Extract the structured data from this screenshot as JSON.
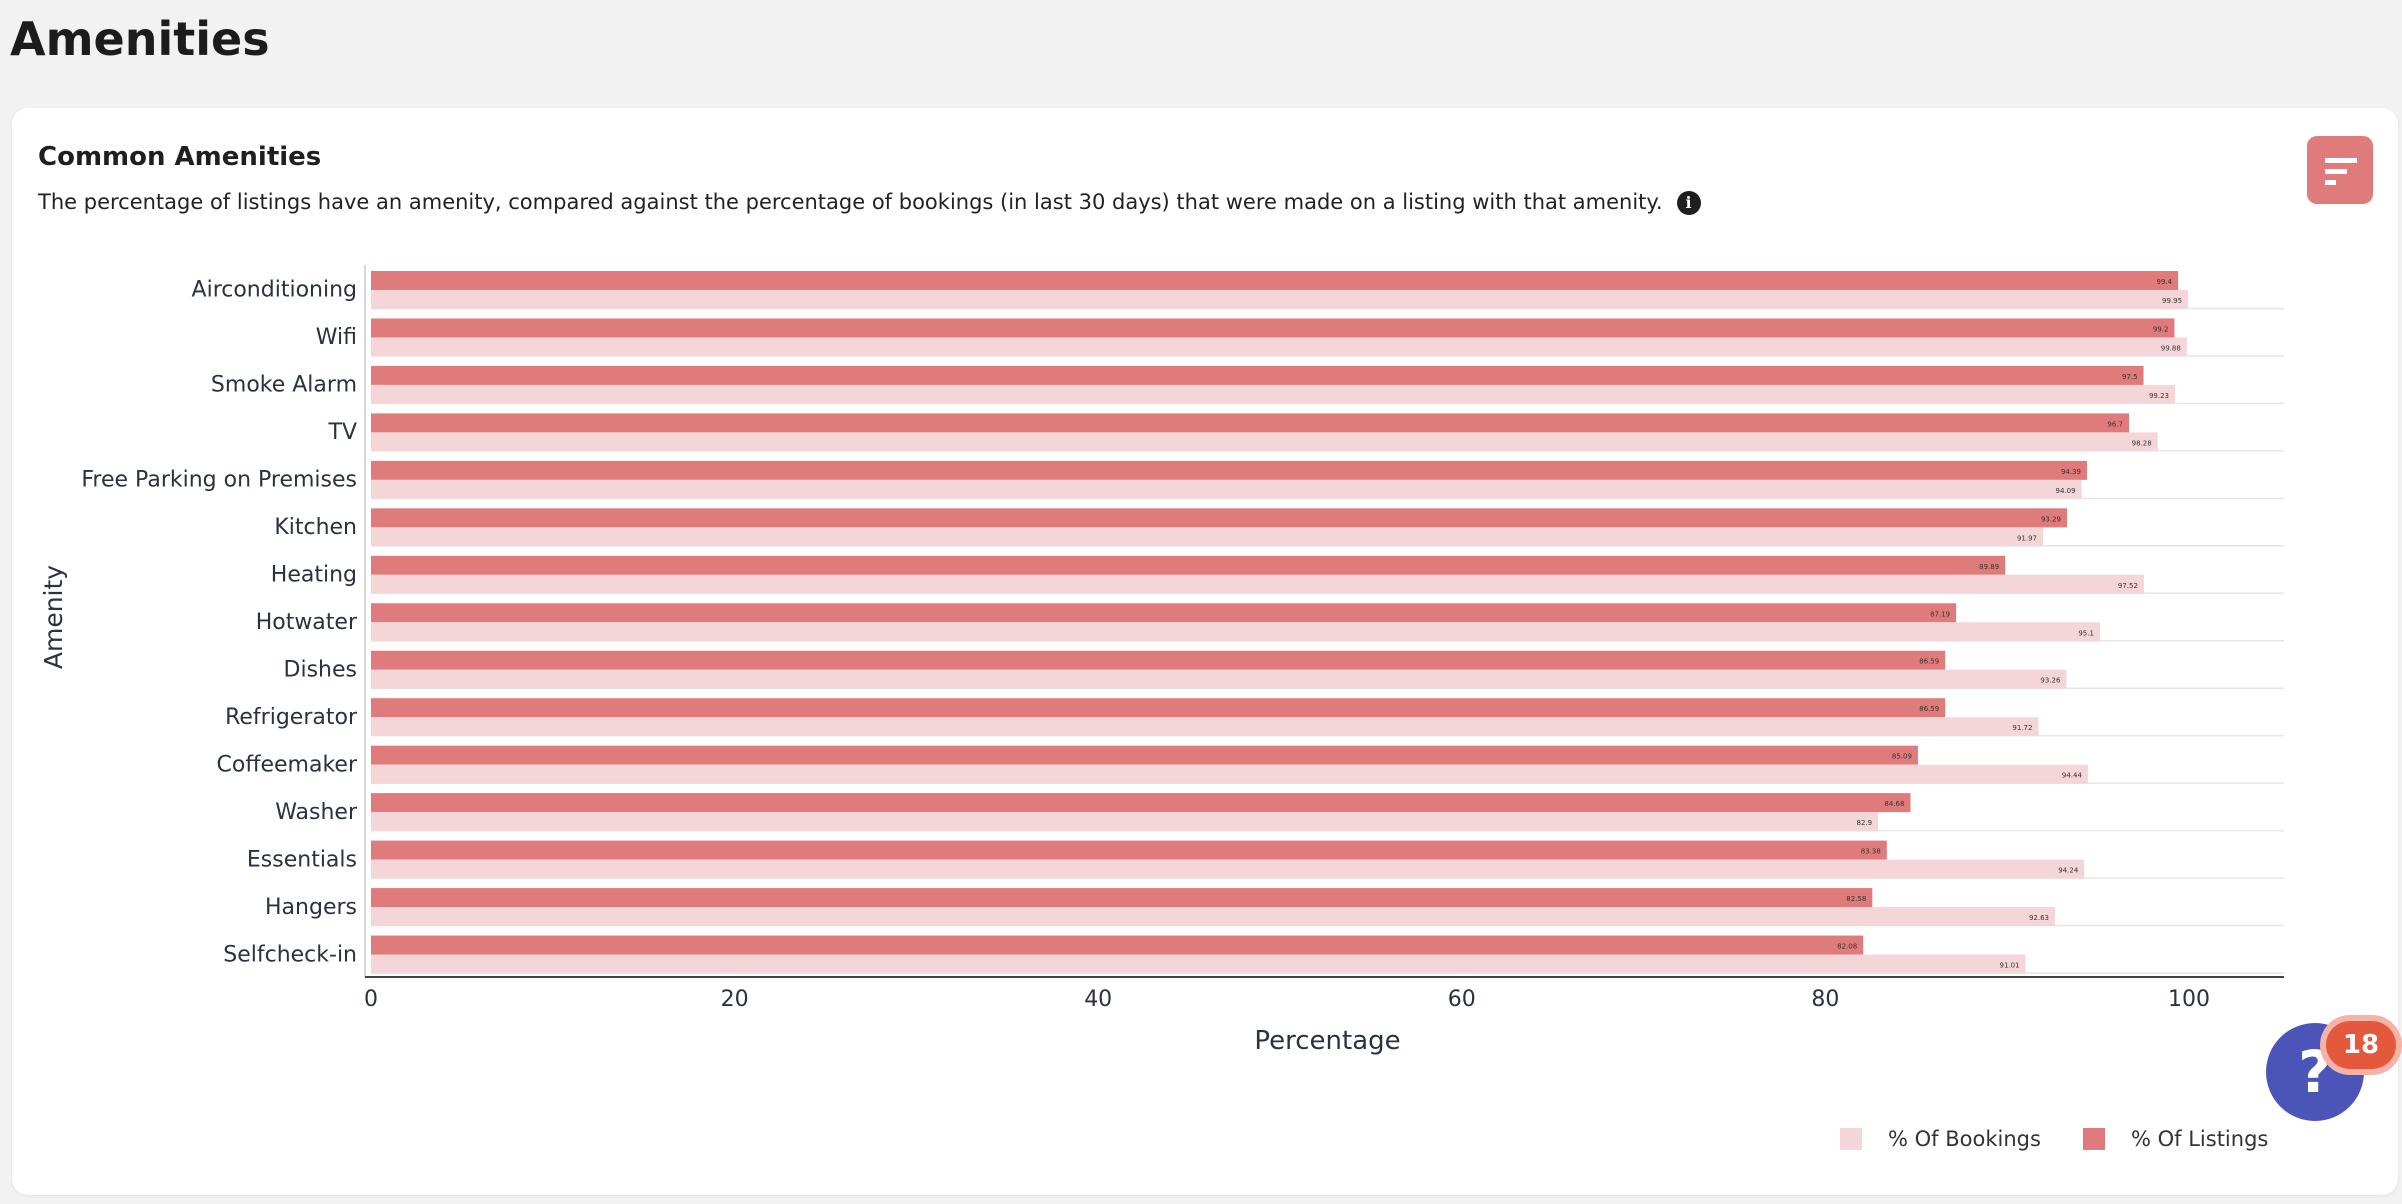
{
  "page": {
    "title": "Amenities"
  },
  "card": {
    "title": "Common Amenities",
    "description": "The percentage of listings have an amenity, compared against the percentage of bookings (in last 30 days) that were made on a listing with that amenity.",
    "info_icon": "i"
  },
  "help": {
    "icon": "?",
    "badge_count": "18"
  },
  "colors": {
    "listings": "#e07b7b",
    "bookings": "#f4d6d8"
  },
  "chart_data": {
    "type": "bar",
    "orientation": "horizontal",
    "xlabel": "Percentage",
    "ylabel": "Amenity",
    "xlim": [
      0,
      105
    ],
    "xticks": [
      0,
      20,
      40,
      60,
      80,
      100
    ],
    "categories": [
      "Airconditioning",
      "Wifi",
      "Smoke Alarm",
      "TV",
      "Free Parking on Premises",
      "Kitchen",
      "Heating",
      "Hotwater",
      "Dishes",
      "Refrigerator",
      "Coffeemaker",
      "Washer",
      "Essentials",
      "Hangers",
      "Selfcheck-in"
    ],
    "series": [
      {
        "name": "% Of Listings",
        "values": [
          99.4,
          99.2,
          97.5,
          96.7,
          94.39,
          93.29,
          89.89,
          87.19,
          86.59,
          86.59,
          85.09,
          84.68,
          83.38,
          82.58,
          82.08
        ]
      },
      {
        "name": "% Of Bookings",
        "values": [
          99.95,
          99.88,
          99.23,
          98.28,
          94.09,
          91.97,
          97.52,
          95.1,
          93.26,
          91.72,
          94.44,
          82.9,
          94.24,
          92.63,
          91.01
        ]
      }
    ],
    "legend": [
      "% Of Bookings",
      "% Of Listings"
    ],
    "legend_position": "bottom-right"
  }
}
